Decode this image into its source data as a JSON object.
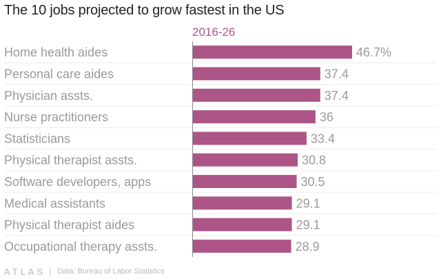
{
  "chart_data": {
    "type": "bar",
    "orientation": "horizontal",
    "title": "The 10 jobs projected to grow fastest in the US",
    "series": [
      {
        "name": "2016-26",
        "values": [
          46.7,
          37.4,
          37.4,
          36,
          33.4,
          30.8,
          30.5,
          29.1,
          29.1,
          28.9
        ],
        "value_labels": [
          "46.7%",
          "37.4",
          "37.4",
          "36",
          "33.4",
          "30.8",
          "30.5",
          "29.1",
          "29.1",
          "28.9"
        ]
      }
    ],
    "categories": [
      "Home health aides",
      "Personal care aides",
      "Physician assts.",
      "Nurse practitioners",
      "Statisticians",
      "Physical therapist assts.",
      "Software developers, apps",
      "Medical assistants",
      "Physical therapist aides",
      "Occupational therapy assts."
    ],
    "xlim": [
      0,
      46.7
    ],
    "grid": false,
    "legend": "top",
    "colors": {
      "bar": "#ad5587",
      "series_label": "#ad5587",
      "category_text": "#9a9a9a",
      "value_text": "#9a9a9a",
      "axis": "#888888",
      "row_line": "#ececec"
    }
  },
  "footer": {
    "logo": "ATLAS",
    "source": "Data: Bureau of Labor Statistics"
  }
}
